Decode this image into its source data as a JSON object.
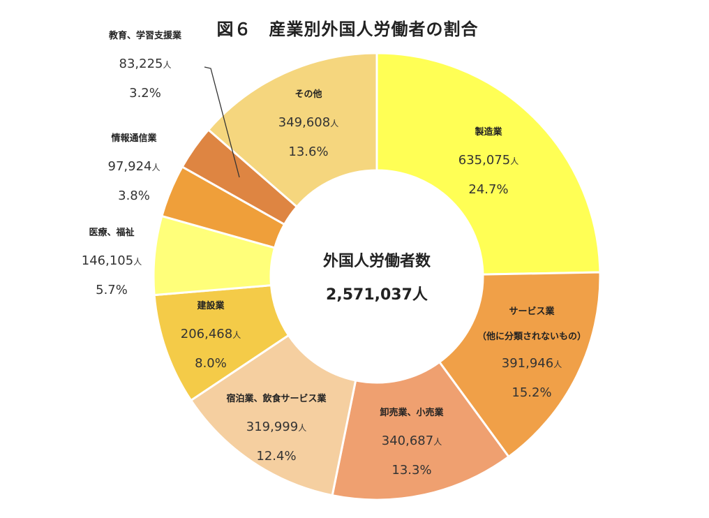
{
  "chart_data": {
    "type": "pie",
    "style": "donut",
    "title": "図６　産業別外国人労働者の割合",
    "center_label": "外国人労働者数",
    "center_value": "2,571,037人",
    "unit": "人",
    "slices": [
      {
        "label": "製造業",
        "value": 635075,
        "value_text": "635,075",
        "percent": "24.7%",
        "color": "#FFFF55"
      },
      {
        "label": "サービス業",
        "sublabel": "（他に分類されないもの）",
        "value": 391946,
        "value_text": "391,946",
        "percent": "15.2%",
        "color": "#F0A048"
      },
      {
        "label": "卸売業、小売業",
        "value": 340687,
        "value_text": "340,687",
        "percent": "13.3%",
        "color": "#EFA070"
      },
      {
        "label": "宿泊業、飲食サービス業",
        "value": 319999,
        "value_text": "319,999",
        "percent": "12.4%",
        "color": "#F5CFA0"
      },
      {
        "label": "建設業",
        "value": 206468,
        "value_text": "206,468",
        "percent": "8.0%",
        "color": "#F4CB48"
      },
      {
        "label": "医療、福祉",
        "value": 146105,
        "value_text": "146,105",
        "percent": "5.7%",
        "color": "#FFFF7A"
      },
      {
        "label": "情報通信業",
        "value": 97924,
        "value_text": "97,924",
        "percent": "3.8%",
        "color": "#EF9F3A"
      },
      {
        "label": "教育、学習支援業",
        "value": 83225,
        "value_text": "83,225",
        "percent": "3.2%",
        "color": "#DE8542"
      },
      {
        "label": "その他",
        "value": 349608,
        "value_text": "349,608",
        "percent": "13.6%",
        "color": "#F5D67E"
      }
    ]
  }
}
